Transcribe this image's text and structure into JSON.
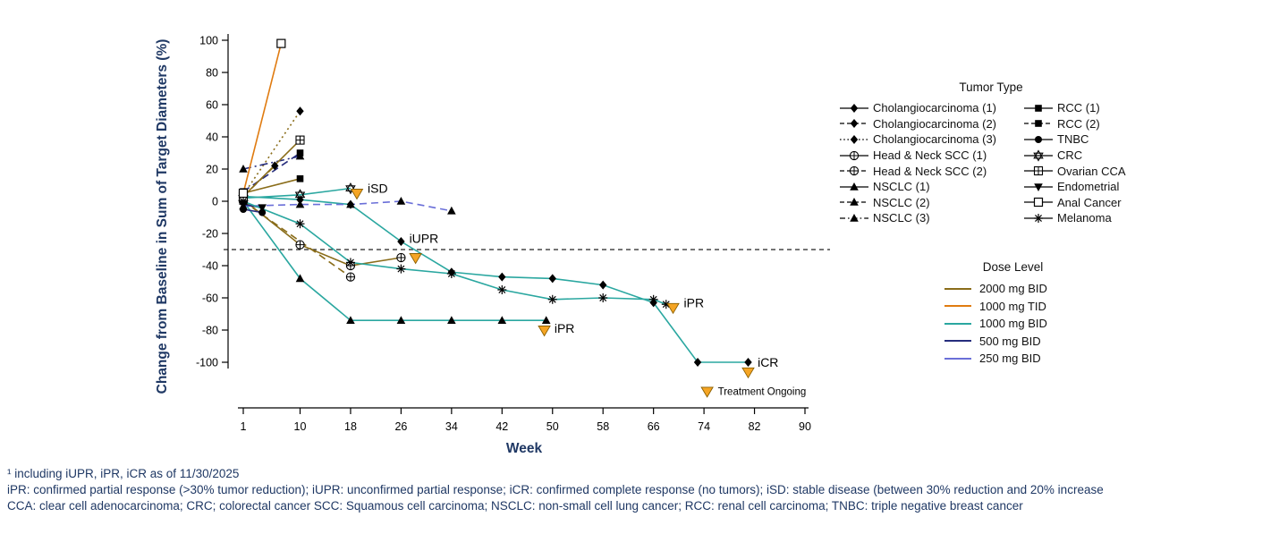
{
  "footnotes": {
    "line1": "¹ including iUPR, iPR, iCR as of 11/30/2025",
    "line2": "iPR: confirmed partial response (>30% tumor reduction); iUPR: unconfirmed partial response; iCR: confirmed complete response (no tumors); iSD: stable disease (between 30% reduction and 20% increase",
    "line3": "CCA: clear cell adenocarcinoma; CRC; colorectal cancer SCC: Squamous cell carcinoma; NSCLC: non-small cell lung cancer; RCC: renal cell carcinoma; TNBC: triple negative breast cancer"
  },
  "legend": {
    "tumor_title": "Tumor Type",
    "dose_title": "Dose Level",
    "tumor_col1": [
      {
        "label": "Cholangiocarcinoma (1)",
        "marker": "diamond",
        "dash": "solid"
      },
      {
        "label": "Cholangiocarcinoma (2)",
        "marker": "diamond",
        "dash": "dashed"
      },
      {
        "label": "Cholangiocarcinoma (3)",
        "marker": "diamond",
        "dash": "dotted"
      },
      {
        "label": "Head & Neck SCC (1)",
        "marker": "circle-plus",
        "dash": "solid"
      },
      {
        "label": "Head & Neck SCC (2)",
        "marker": "circle-plus",
        "dash": "dashed"
      },
      {
        "label": "NSCLC (1)",
        "marker": "triangle",
        "dash": "solid"
      },
      {
        "label": "NSCLC (2)",
        "marker": "triangle",
        "dash": "dashed"
      },
      {
        "label": "NSCLC (3)",
        "marker": "triangle",
        "dash": "dashdot"
      }
    ],
    "tumor_col2": [
      {
        "label": "RCC (1)",
        "marker": "square",
        "dash": "solid"
      },
      {
        "label": "RCC (2)",
        "marker": "square",
        "dash": "dashed"
      },
      {
        "label": "TNBC",
        "marker": "circle",
        "dash": "solid"
      },
      {
        "label": "CRC",
        "marker": "star6",
        "dash": "solid"
      },
      {
        "label": "Ovarian CCA",
        "marker": "square-plus",
        "dash": "solid"
      },
      {
        "label": "Endometrial",
        "marker": "triangle-down",
        "dash": "solid"
      },
      {
        "label": "Anal Cancer",
        "marker": "open-square",
        "dash": "solid"
      },
      {
        "label": "Melanoma",
        "marker": "asterisk",
        "dash": "solid"
      }
    ],
    "dose_items": [
      "2000 mg BID",
      "1000 mg TID",
      "1000 mg BID",
      "500 mg BID",
      "250 mg BID"
    ]
  },
  "chart_data": {
    "type": "line",
    "title": "",
    "xlabel": "Week",
    "ylabel": "Change from Baseline in Sum of Target Diameters (%)",
    "xlim": [
      1,
      90
    ],
    "ylim": [
      -100,
      100
    ],
    "x_ticks": [
      1,
      10,
      18,
      26,
      34,
      42,
      50,
      58,
      66,
      74,
      82,
      90
    ],
    "y_ticks": [
      100,
      80,
      60,
      40,
      20,
      0,
      -20,
      -40,
      -60,
      -80,
      -100
    ],
    "reference_line_y": -30,
    "grid": false,
    "legend_position": "right",
    "axis_label_color": "#1f3864",
    "ongoing_color": "#f5a524",
    "dose_colors": {
      "2000 mg BID": "#8a6d1a",
      "1000 mg TID": "#e07b10",
      "1000 mg BID": "#2aa7a0",
      "500 mg BID": "#262d7d",
      "250 mg BID": "#6a6fd8"
    },
    "series": [
      {
        "name": "Cholangiocarcinoma (1)",
        "marker": "diamond",
        "dash": "solid",
        "dose": "1000 mg BID",
        "points": [
          [
            1,
            3
          ],
          [
            10,
            1
          ],
          [
            18,
            -2
          ],
          [
            26,
            -25
          ],
          [
            34,
            -44
          ],
          [
            42,
            -47
          ],
          [
            50,
            -48
          ],
          [
            58,
            -52
          ],
          [
            66,
            -63
          ],
          [
            73,
            -100
          ],
          [
            81,
            -100
          ]
        ]
      },
      {
        "name": "Cholangiocarcinoma (2)",
        "marker": "diamond",
        "dash": "dashed",
        "dose": "2000 mg BID",
        "points": [
          [
            1,
            3
          ],
          [
            6,
            22
          ]
        ]
      },
      {
        "name": "Cholangiocarcinoma (3)",
        "marker": "diamond",
        "dash": "dotted",
        "dose": "2000 mg BID",
        "points": [
          [
            1,
            4
          ],
          [
            10,
            56
          ]
        ]
      },
      {
        "name": "Head & Neck SCC (1)",
        "marker": "circle-plus",
        "dash": "solid",
        "dose": "2000 mg BID",
        "points": [
          [
            1,
            1
          ],
          [
            10,
            -27
          ],
          [
            18,
            -40
          ],
          [
            26,
            -35
          ]
        ]
      },
      {
        "name": "Head & Neck SCC (2)",
        "marker": "circle-plus",
        "dash": "dashed",
        "dose": "2000 mg BID",
        "points": [
          [
            1,
            0
          ],
          [
            18,
            -47
          ]
        ]
      },
      {
        "name": "NSCLC (1)",
        "marker": "triangle",
        "dash": "solid",
        "dose": "1000 mg BID",
        "points": [
          [
            1,
            0
          ],
          [
            10,
            -48
          ],
          [
            18,
            -74
          ],
          [
            26,
            -74
          ],
          [
            34,
            -74
          ],
          [
            42,
            -74
          ],
          [
            49,
            -74
          ]
        ]
      },
      {
        "name": "NSCLC (2)",
        "marker": "triangle",
        "dash": "dashed",
        "dose": "250 mg BID",
        "points": [
          [
            1,
            -3
          ],
          [
            10,
            -2
          ],
          [
            18,
            -2
          ],
          [
            26,
            0
          ],
          [
            34,
            -6
          ]
        ]
      },
      {
        "name": "NSCLC (3)",
        "marker": "triangle",
        "dash": "dashdot",
        "dose": "500 mg BID",
        "points": [
          [
            1,
            20
          ],
          [
            10,
            28
          ]
        ]
      },
      {
        "name": "RCC (1)",
        "marker": "square",
        "dash": "solid",
        "dose": "2000 mg BID",
        "points": [
          [
            1,
            5
          ],
          [
            10,
            14
          ]
        ]
      },
      {
        "name": "RCC (2)",
        "marker": "square",
        "dash": "dashed",
        "dose": "500 mg BID",
        "points": [
          [
            1,
            6
          ],
          [
            10,
            30
          ]
        ]
      },
      {
        "name": "TNBC",
        "marker": "circle",
        "dash": "solid",
        "dose": "500 mg BID",
        "points": [
          [
            1,
            -5
          ],
          [
            4,
            -7
          ]
        ]
      },
      {
        "name": "CRC",
        "marker": "star6",
        "dash": "solid",
        "dose": "1000 mg BID",
        "points": [
          [
            1,
            2
          ],
          [
            10,
            4
          ],
          [
            18,
            8
          ]
        ]
      },
      {
        "name": "Ovarian CCA",
        "marker": "square-plus",
        "dash": "solid",
        "dose": "2000 mg BID",
        "points": [
          [
            1,
            3
          ],
          [
            10,
            38
          ]
        ]
      },
      {
        "name": "Endometrial",
        "marker": "triangle-down",
        "dash": "solid",
        "dose": "500 mg BID",
        "points": [
          [
            1,
            -2
          ],
          [
            4,
            -4
          ]
        ]
      },
      {
        "name": "Anal Cancer",
        "marker": "open-square",
        "dash": "solid",
        "dose": "1000 mg TID",
        "points": [
          [
            1,
            5
          ],
          [
            7,
            98
          ]
        ]
      },
      {
        "name": "Melanoma",
        "marker": "asterisk",
        "dash": "solid",
        "dose": "1000 mg BID",
        "points": [
          [
            1,
            0
          ],
          [
            10,
            -14
          ],
          [
            18,
            -38
          ],
          [
            26,
            -42
          ],
          [
            34,
            -45
          ],
          [
            42,
            -55
          ],
          [
            50,
            -61
          ],
          [
            58,
            -60
          ],
          [
            66,
            -61
          ],
          [
            68,
            -64
          ]
        ]
      }
    ],
    "annotations": [
      {
        "text": "iSD",
        "x": 20.7,
        "y": 8
      },
      {
        "text": "iUPR",
        "x": 27.3,
        "y": -23
      },
      {
        "text": "iPR",
        "x": 50.3,
        "y": -79
      },
      {
        "text": "iPR",
        "x": 70.8,
        "y": -63
      },
      {
        "text": "iCR",
        "x": 82.5,
        "y": -100
      }
    ],
    "ongoing_markers": [
      {
        "x": 19,
        "y": 5
      },
      {
        "x": 28.3,
        "y": -35
      },
      {
        "x": 48.7,
        "y": -80
      },
      {
        "x": 69.1,
        "y": -66
      },
      {
        "x": 81,
        "y": -106
      }
    ],
    "ongoing_legend": {
      "label": "Treatment Ongoing",
      "x": 74.5,
      "y": -118
    }
  }
}
